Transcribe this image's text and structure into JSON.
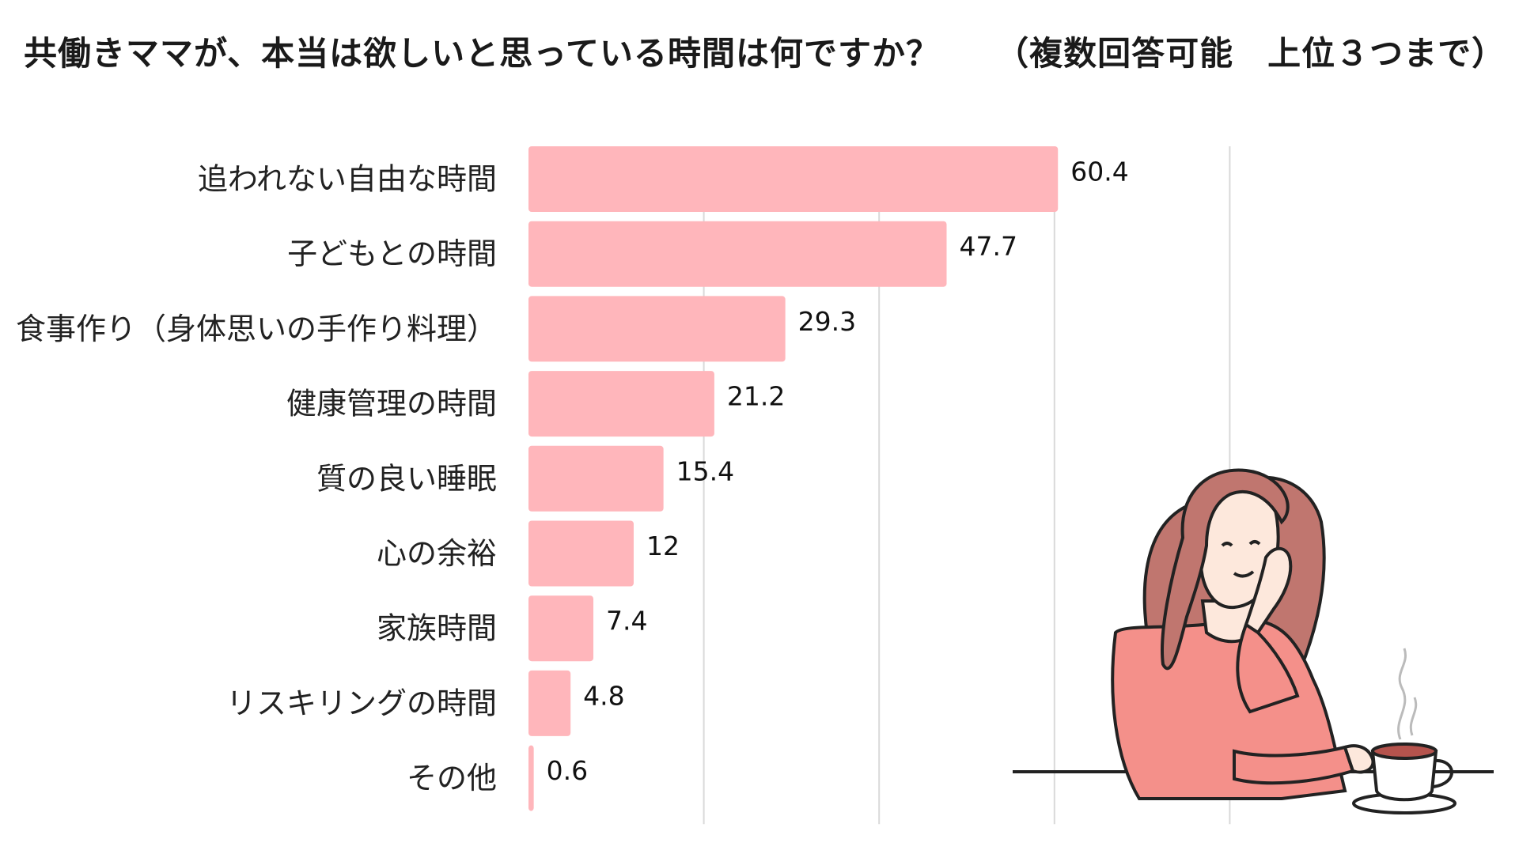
{
  "chart_data": {
    "type": "bar",
    "orientation": "horizontal",
    "title": "共働きママが、本当は欲しいと思っている時間は何ですか？",
    "subtitle": "（複数回答可能　上位３つまで）",
    "categories": [
      "追われない自由な時間",
      "子どもとの時間",
      "食事作り（身体思いの手作り料理）",
      "健康管理の時間",
      "質の良い睡眠",
      "心の余裕",
      "家族時間",
      "リスキリングの時間",
      "その他"
    ],
    "values": [
      60.4,
      47.7,
      29.3,
      21.2,
      15.4,
      12,
      7.4,
      4.8,
      0.6
    ],
    "value_labels": [
      "60.4",
      "47.7",
      "29.3",
      "21.2",
      "15.4",
      "12",
      "7.4",
      "4.8",
      "0.6"
    ],
    "xlim": [
      0,
      100
    ],
    "grid": true,
    "bar_color": "#ffb6bb",
    "gridline_color": "#d9d9d9"
  }
}
